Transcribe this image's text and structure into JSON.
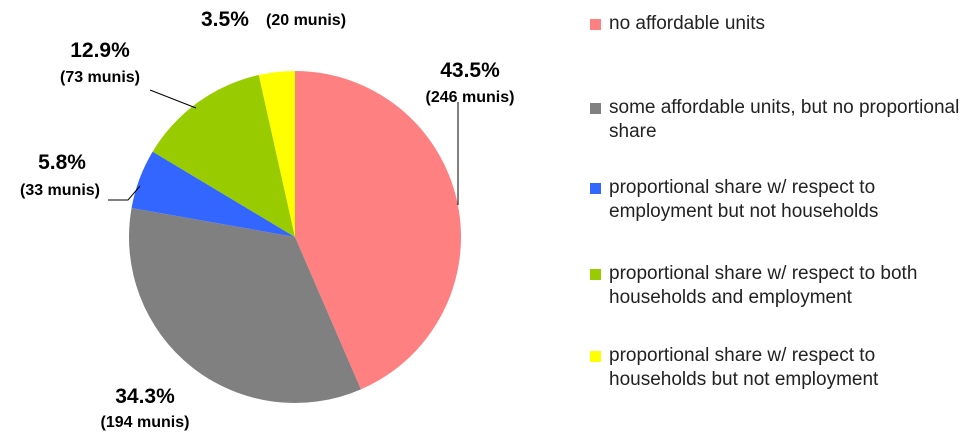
{
  "chart_data": {
    "type": "pie",
    "categories": [
      "no affordable units",
      "some affordable units, but no proportional share",
      "proportional share w/ respect to employment but not households",
      "proportional share w/ respect to both households and employment",
      "proportional share w/ respect to households but not employment"
    ],
    "values": [
      43.5,
      34.3,
      5.8,
      12.9,
      3.5
    ],
    "value_labels": [
      "43.5%",
      "34.3%",
      "5.8%",
      "12.9%",
      "3.5%"
    ],
    "count_labels": [
      "(246 munis)",
      "(194 munis)",
      "(33 munis)",
      "(73 munis)",
      "(20 munis)"
    ],
    "colors": [
      "#ff8080",
      "#808080",
      "#3366ff",
      "#99cc00",
      "#ffff00"
    ],
    "legend": "right"
  }
}
